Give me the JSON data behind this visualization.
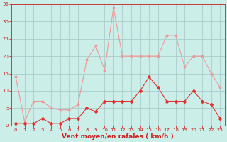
{
  "x": [
    0,
    1,
    2,
    3,
    4,
    5,
    6,
    7,
    8,
    9,
    10,
    11,
    12,
    13,
    14,
    15,
    16,
    17,
    18,
    19,
    20,
    21,
    22,
    23
  ],
  "wind_avg": [
    0.5,
    0.5,
    0.5,
    2,
    0.5,
    0.5,
    2,
    2,
    5,
    4,
    7,
    7,
    7,
    7,
    10,
    14,
    11,
    7,
    7,
    7,
    10,
    7,
    6,
    2
  ],
  "wind_gust": [
    14,
    1,
    7,
    7,
    5,
    4.5,
    4.5,
    6,
    19,
    23,
    16,
    34,
    20,
    20,
    20,
    20,
    20,
    26,
    26,
    17,
    20,
    20,
    15,
    11
  ],
  "bg_color": "#cceee8",
  "grid_color": "#aacccc",
  "line_avg_color": "#dd3333",
  "line_gust_color": "#ee9999",
  "xlabel": "Vent moyen/en rafales ( km/h )",
  "xlabel_color": "#cc2222",
  "tick_color": "#cc2222",
  "axis_color": "#cc2222",
  "ylim": [
    0,
    35
  ],
  "yticks": [
    0,
    5,
    10,
    15,
    20,
    25,
    30,
    35
  ],
  "xlim": [
    -0.5,
    23.5
  ],
  "title_fontsize": 6,
  "xlabel_fontsize": 6.5,
  "tick_fontsize": 5
}
